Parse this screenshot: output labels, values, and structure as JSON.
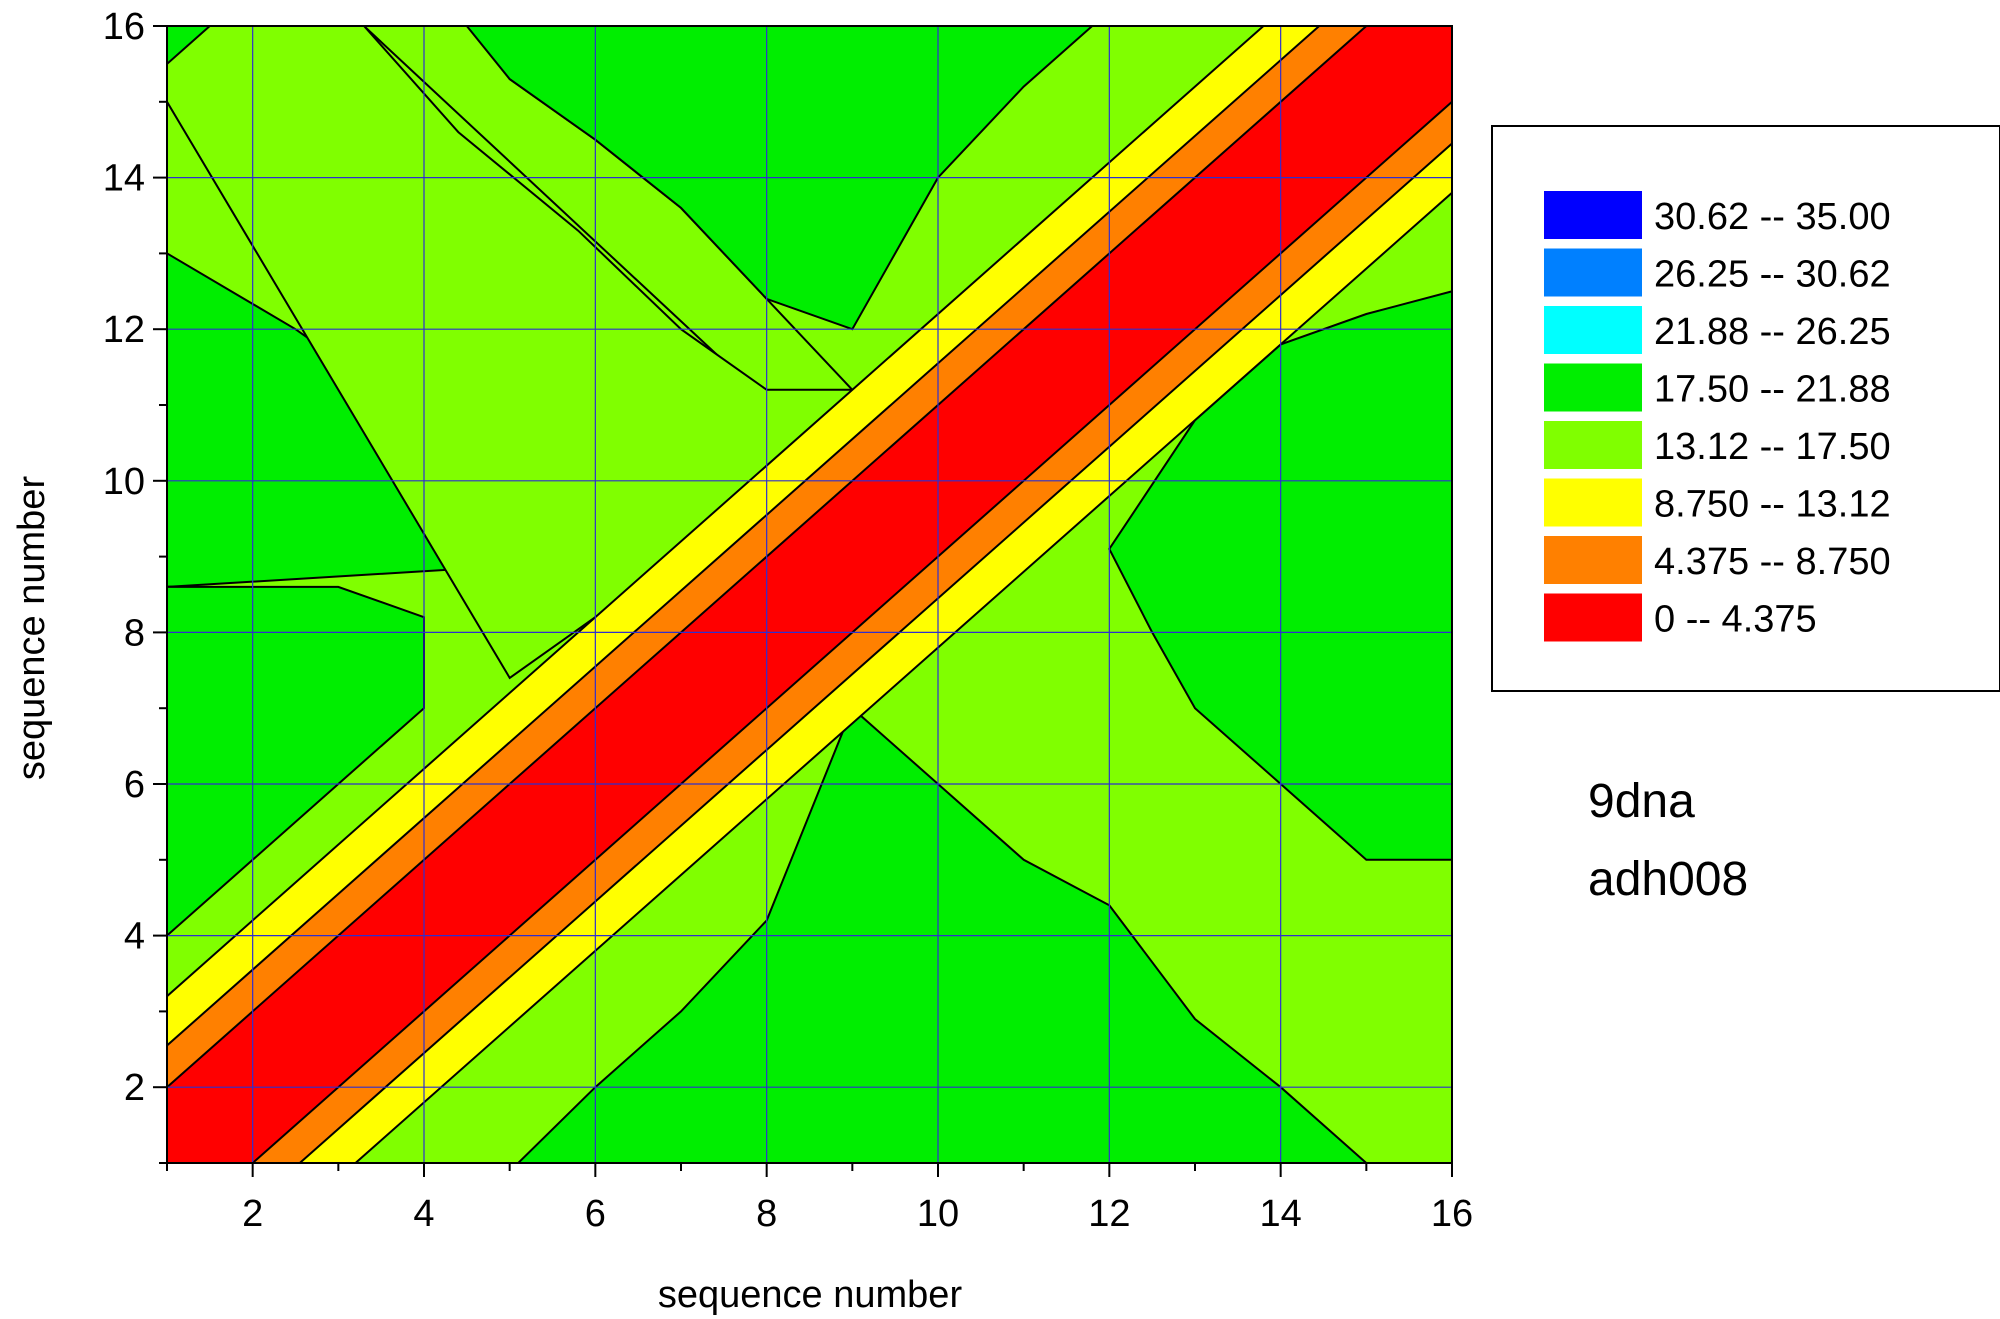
{
  "chart_data": {
    "type": "heatmap",
    "subtype": "filled-contour",
    "xlabel": "sequence number",
    "ylabel": "sequence number",
    "xlim": [
      1,
      16
    ],
    "ylim": [
      1,
      16
    ],
    "x_ticks": [
      2,
      4,
      6,
      8,
      10,
      12,
      14,
      16
    ],
    "y_ticks": [
      2,
      4,
      6,
      8,
      10,
      12,
      14,
      16
    ],
    "x_tick_labels": [
      "2",
      "4",
      "6",
      "8",
      "10",
      "12",
      "14",
      "16"
    ],
    "y_tick_labels": [
      "2",
      "4",
      "6",
      "8",
      "10",
      "12",
      "14",
      "16"
    ],
    "grid": true,
    "legend_position": "right",
    "levels": [
      {
        "label_lo": "30.62",
        "label_hi": "35.00",
        "color": "#0000ff"
      },
      {
        "label_lo": "26.25",
        "label_hi": "30.62",
        "color": "#0080ff"
      },
      {
        "label_lo": "21.88",
        "label_hi": "26.25",
        "color": "#00ffff"
      },
      {
        "label_lo": "17.50",
        "label_hi": "21.88",
        "color": "#00ee00"
      },
      {
        "label_lo": "13.12",
        "label_hi": "17.50",
        "color": "#80ff00"
      },
      {
        "label_lo": "8.750",
        "label_hi": "13.12",
        "color": "#ffff00"
      },
      {
        "label_lo": "4.375",
        "label_hi": "8.750",
        "color": "#ff8000"
      },
      {
        "label_lo": "0",
        "label_hi": "4.375",
        "color": "#ff0000"
      }
    ],
    "legend_separator": "--",
    "annotations": [
      "9dna",
      "adh008"
    ],
    "regions": [
      {
        "level": 3,
        "points": [
          [
            1,
            8.6
          ],
          [
            16,
            8.6
          ],
          [
            16,
            16
          ],
          [
            1,
            16
          ]
        ]
      },
      {
        "level": 3,
        "points": [
          [
            1,
            1
          ],
          [
            16,
            1
          ],
          [
            16,
            8.6
          ],
          [
            1,
            8.6
          ]
        ]
      },
      {
        "level": 4,
        "points": [
          [
            1,
            15
          ],
          [
            2,
            14
          ],
          [
            3,
            13
          ],
          [
            4,
            12.4
          ],
          [
            4.4,
            12
          ],
          [
            5,
            10.9
          ],
          [
            6,
            10
          ],
          [
            7,
            9
          ]
        ]
      },
      {
        "level": 4,
        "points": [
          [
            1,
            15
          ],
          [
            1,
            16
          ],
          [
            16,
            16
          ],
          [
            16,
            1
          ],
          [
            1,
            1
          ],
          [
            1,
            8.6
          ],
          [
            6.8,
            9
          ],
          [
            4,
            10.8
          ],
          [
            2.5,
            12
          ],
          [
            1,
            13
          ]
        ]
      },
      {
        "level": 4,
        "points": [
          [
            3.3,
            16
          ],
          [
            4.7,
            16
          ],
          [
            5,
            15.3
          ],
          [
            6,
            14.5
          ],
          [
            7,
            13.6
          ],
          [
            8,
            12.4
          ],
          [
            9,
            11.2
          ],
          [
            9.3,
            11
          ],
          [
            9,
            10
          ]
        ]
      },
      {
        "level": 4,
        "points": [
          [
            1,
            15
          ],
          [
            1,
            16
          ],
          [
            3.3,
            16
          ],
          [
            4.4,
            14.6
          ],
          [
            5.8,
            13.3
          ],
          [
            7,
            12
          ],
          [
            8,
            11.2
          ],
          [
            9,
            11.2
          ],
          [
            9,
            9.8
          ],
          [
            8,
            8.9
          ],
          [
            7,
            8.6
          ],
          [
            6,
            8.2
          ],
          [
            5,
            7.4
          ]
        ]
      },
      {
        "level": 3,
        "points": [
          [
            1,
            16
          ],
          [
            1.5,
            16
          ],
          [
            1,
            15.5
          ]
        ]
      },
      {
        "level": 3,
        "points": [
          [
            4.5,
            16
          ],
          [
            5,
            15.3
          ],
          [
            6,
            14.5
          ],
          [
            7,
            13.6
          ],
          [
            8,
            12.4
          ],
          [
            9,
            12
          ],
          [
            10,
            14
          ],
          [
            11,
            15.2
          ],
          [
            11.8,
            16
          ]
        ]
      },
      {
        "level": 3,
        "points": [
          [
            8.4,
            1
          ],
          [
            15,
            1
          ],
          [
            14,
            2
          ],
          [
            13,
            2.9
          ],
          [
            12,
            4.4
          ],
          [
            11,
            5
          ],
          [
            10,
            6
          ],
          [
            9,
            7
          ],
          [
            8,
            4.2
          ],
          [
            7,
            3
          ],
          [
            6,
            2
          ],
          [
            5.1,
            1
          ]
        ]
      },
      {
        "level": 3,
        "points": [
          [
            16,
            5
          ],
          [
            16,
            12.5
          ],
          [
            15,
            12.2
          ],
          [
            14,
            11.8
          ],
          [
            13,
            10.8
          ],
          [
            12,
            9.1
          ],
          [
            12.5,
            8
          ],
          [
            13,
            7
          ],
          [
            14,
            6
          ],
          [
            15,
            5
          ]
        ]
      },
      {
        "level": 3,
        "points": [
          [
            1,
            8.6
          ],
          [
            3,
            8.6
          ],
          [
            4,
            8.2
          ],
          [
            4,
            7
          ],
          [
            3,
            6
          ],
          [
            2,
            5
          ],
          [
            1,
            4
          ]
        ]
      }
    ],
    "diagonal_band_halfwidths": {
      "red": 1.0,
      "orange": 1.55,
      "yellow": 2.2
    }
  }
}
